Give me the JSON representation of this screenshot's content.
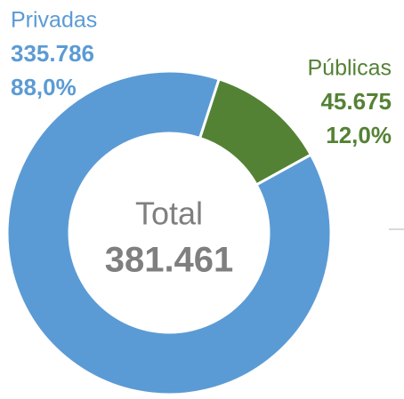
{
  "chart_data": {
    "type": "donut",
    "categories": [
      "Privadas",
      "Públicas"
    ],
    "values": [
      335786,
      45675
    ],
    "value_labels": [
      "335.786",
      "45.675"
    ],
    "percentages": [
      88.0,
      12.0
    ],
    "percentage_labels": [
      "88,0%",
      "12,0%"
    ],
    "colors": [
      "#5b9bd5",
      "#548235"
    ],
    "label_colors": [
      "#5b9bd5",
      "#548235"
    ],
    "center_label": "Total",
    "total": 381461,
    "total_label": "381.461"
  }
}
